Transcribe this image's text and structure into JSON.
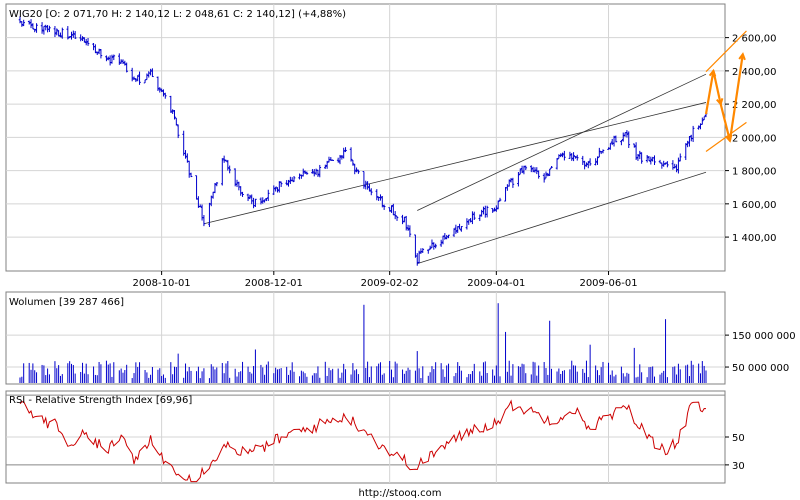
{
  "source_url": "http://stooq.com",
  "colors": {
    "price": "#0000cc",
    "volume": "#0000cc",
    "rsi": "#cc0000",
    "trend": "#333333",
    "projection": "#ff8800",
    "frame": "#808080",
    "grid": "#d4d4d4"
  },
  "chart_data": [
    {
      "type": "line",
      "title": "WIG20 [O: 2 071,70  H: 2 140,12  L: 2 048,61  C: 2 140,12] (+4,88%)",
      "x_tick_labels": [
        "2008-10-01",
        "2008-12-01",
        "2009-02-02",
        "2009-04-01",
        "2009-06-01"
      ],
      "y_tick_labels": [
        "2 600,00",
        "2 400,00",
        "2 200,00",
        "2 000,00",
        "1 800,00",
        "1 600,00",
        "1 400,00"
      ],
      "y_ticks": [
        2600,
        2400,
        2200,
        2000,
        1800,
        1600,
        1400
      ],
      "ylim": [
        1220,
        2700
      ],
      "x_range": [
        "2008-07-16",
        "2009-07-24"
      ],
      "anchors": [
        [
          "2008-07-16",
          2700
        ],
        [
          "2008-07-28",
          2650
        ],
        [
          "2008-08-12",
          2615
        ],
        [
          "2008-08-22",
          2565
        ],
        [
          "2008-09-01",
          2480
        ],
        [
          "2008-09-10",
          2450
        ],
        [
          "2008-09-16",
          2330
        ],
        [
          "2008-09-25",
          2390
        ],
        [
          "2008-10-07",
          2150
        ],
        [
          "2008-10-14",
          1880
        ],
        [
          "2008-10-24",
          1480
        ],
        [
          "2008-11-04",
          1880
        ],
        [
          "2008-11-10",
          1720
        ],
        [
          "2008-11-20",
          1600
        ],
        [
          "2008-12-05",
          1720
        ],
        [
          "2008-12-25",
          1800
        ],
        [
          "2009-01-09",
          1910
        ],
        [
          "2009-01-16",
          1780
        ],
        [
          "2009-01-26",
          1630
        ],
        [
          "2009-02-10",
          1500
        ],
        [
          "2009-02-17",
          1270
        ],
        [
          "2009-02-25",
          1360
        ],
        [
          "2009-03-10",
          1430
        ],
        [
          "2009-03-20",
          1530
        ],
        [
          "2009-04-01",
          1590
        ],
        [
          "2009-04-08",
          1720
        ],
        [
          "2009-04-17",
          1820
        ],
        [
          "2009-04-27",
          1740
        ],
        [
          "2009-05-05",
          1870
        ],
        [
          "2009-05-12",
          1880
        ],
        [
          "2009-05-21",
          1830
        ],
        [
          "2009-06-02",
          1960
        ],
        [
          "2009-06-10",
          2020
        ],
        [
          "2009-06-17",
          1880
        ],
        [
          "2009-06-29",
          1850
        ],
        [
          "2009-07-07",
          1800
        ],
        [
          "2009-07-14",
          1980
        ],
        [
          "2009-07-21",
          2100
        ],
        [
          "2009-07-24",
          2140
        ]
      ],
      "trend_lines": [
        [
          [
            "2008-10-24",
            1480
          ],
          [
            "2009-07-24",
            2210
          ]
        ],
        [
          [
            "2009-02-17",
            1560
          ],
          [
            "2009-07-24",
            2380
          ]
        ],
        [
          [
            "2009-02-17",
            1240
          ],
          [
            "2009-07-24",
            1790
          ]
        ]
      ],
      "channel_lines": [
        [
          [
            "2009-07-24",
            2395
          ],
          [
            "2009-08-15",
            2640
          ]
        ],
        [
          [
            "2009-07-24",
            1915
          ],
          [
            "2009-08-15",
            2090
          ]
        ]
      ],
      "projection": [
        [
          "2009-07-24",
          2140
        ],
        [
          "2009-07-28",
          2400
        ],
        [
          "2009-08-01",
          2200
        ],
        [
          "2009-08-06",
          1980
        ],
        [
          "2009-08-13",
          2500
        ]
      ]
    },
    {
      "type": "bar",
      "title": "Wolumen [39 287 466]",
      "y_tick_labels": [
        "150 000 000",
        "50 000 000"
      ],
      "y_ticks": [
        150000000,
        50000000
      ],
      "ylim": [
        0,
        260000000
      ],
      "bars": [
        [
          "2008-10-10",
          92000000
        ],
        [
          "2008-11-21",
          105000000
        ],
        [
          "2009-01-19",
          245000000
        ],
        [
          "2009-02-17",
          100000000
        ],
        [
          "2009-04-02",
          250000000
        ],
        [
          "2009-04-06",
          160000000
        ],
        [
          "2009-04-30",
          195000000
        ],
        [
          "2009-05-22",
          120000000
        ],
        [
          "2009-06-15",
          110000000
        ],
        [
          "2009-07-02",
          200000000
        ],
        [
          "2009-07-24",
          39287466
        ]
      ]
    },
    {
      "type": "line",
      "title": "RSI - Relative Strength Index [69,96]",
      "y_tick_labels": [
        "50",
        "30"
      ],
      "y_ticks": [
        50,
        30
      ],
      "ylim": [
        17,
        83
      ],
      "reference_lines": [
        80,
        30
      ],
      "anchors": [
        [
          "2008-07-16",
          75
        ],
        [
          "2008-07-25",
          64
        ],
        [
          "2008-08-05",
          58
        ],
        [
          "2008-08-12",
          45
        ],
        [
          "2008-08-22",
          53
        ],
        [
          "2008-09-01",
          40
        ],
        [
          "2008-09-10",
          50
        ],
        [
          "2008-09-17",
          32
        ],
        [
          "2008-09-25",
          47
        ],
        [
          "2008-10-06",
          28
        ],
        [
          "2008-10-20",
          20
        ],
        [
          "2008-11-04",
          44
        ],
        [
          "2008-11-18",
          38
        ],
        [
          "2008-11-28",
          45
        ],
        [
          "2008-12-10",
          52
        ],
        [
          "2008-12-22",
          57
        ],
        [
          "2009-01-08",
          65
        ],
        [
          "2009-01-19",
          56
        ],
        [
          "2009-01-28",
          44
        ],
        [
          "2009-02-06",
          36
        ],
        [
          "2009-02-17",
          28
        ],
        [
          "2009-02-25",
          38
        ],
        [
          "2009-03-06",
          45
        ],
        [
          "2009-03-18",
          55
        ],
        [
          "2009-03-31",
          60
        ],
        [
          "2009-04-10",
          73
        ],
        [
          "2009-04-20",
          68
        ],
        [
          "2009-05-01",
          62
        ],
        [
          "2009-05-13",
          70
        ],
        [
          "2009-05-21",
          57
        ],
        [
          "2009-06-02",
          65
        ],
        [
          "2009-06-11",
          71
        ],
        [
          "2009-06-22",
          50
        ],
        [
          "2009-07-02",
          41
        ],
        [
          "2009-07-09",
          48
        ],
        [
          "2009-07-16",
          72
        ],
        [
          "2009-07-24",
          70
        ]
      ]
    }
  ]
}
